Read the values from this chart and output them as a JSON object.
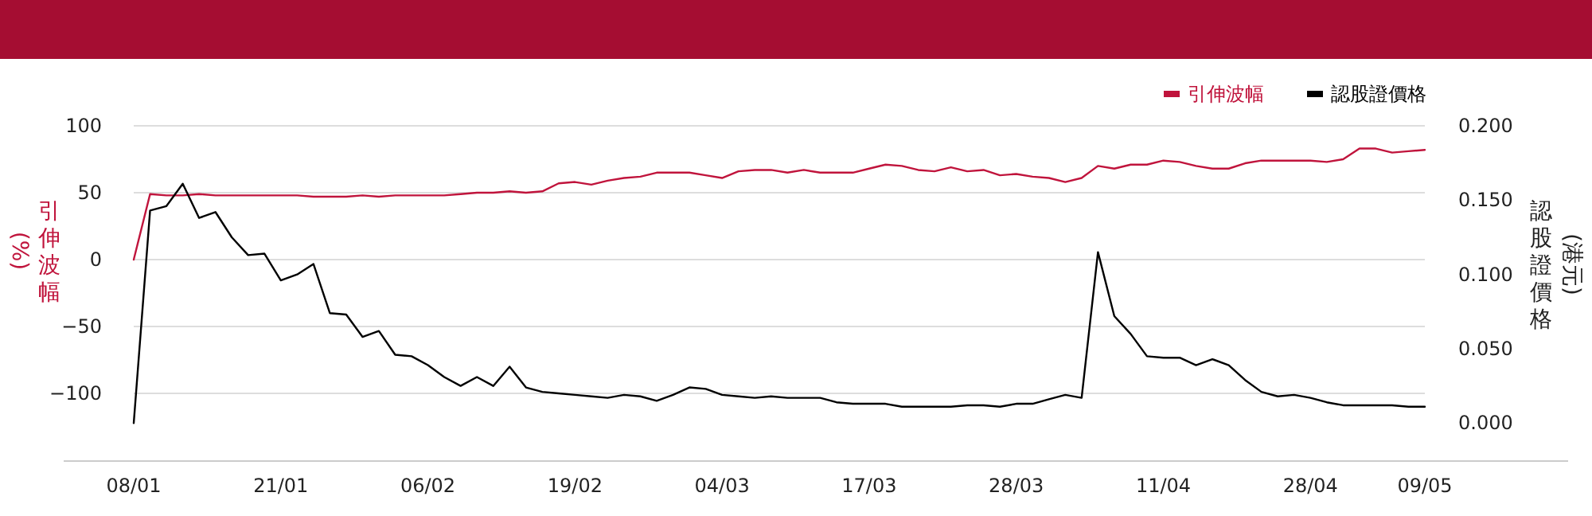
{
  "chart_data": {
    "type": "line",
    "ylabel": "引伸波幅(%)",
    "y2label": "認股證價格(港元)",
    "categories": [
      "08/01",
      null,
      null,
      null,
      null,
      null,
      null,
      null,
      null,
      "21/01",
      null,
      null,
      null,
      null,
      null,
      null,
      null,
      null,
      "06/02",
      null,
      null,
      null,
      null,
      null,
      null,
      null,
      null,
      "19/02",
      null,
      null,
      null,
      null,
      null,
      null,
      null,
      null,
      "04/03",
      null,
      null,
      null,
      null,
      null,
      null,
      null,
      null,
      "17/03",
      null,
      null,
      null,
      null,
      null,
      null,
      null,
      null,
      "28/03",
      null,
      null,
      null,
      null,
      null,
      null,
      null,
      null,
      "11/04",
      null,
      null,
      null,
      null,
      null,
      null,
      null,
      null,
      "28/04",
      null,
      null,
      null,
      null,
      null,
      null,
      "09/05"
    ],
    "series": [
      {
        "name": "引伸波幅",
        "color": "#c0143c",
        "values": [
          0,
          49,
          48,
          48,
          49,
          48,
          48,
          48,
          48,
          48,
          48,
          47,
          47,
          47,
          48,
          47,
          48,
          48,
          48,
          48,
          49,
          50,
          50,
          51,
          50,
          51,
          57,
          58,
          56,
          59,
          61,
          62,
          65,
          65,
          65,
          63,
          61,
          66,
          67,
          67,
          65,
          67,
          65,
          65,
          65,
          68,
          71,
          70,
          67,
          66,
          69,
          66,
          67,
          63,
          64,
          62,
          61,
          58,
          61,
          70,
          68,
          71,
          71,
          74,
          73,
          70,
          68,
          68,
          72,
          74,
          74,
          74,
          74,
          73,
          75,
          83,
          83,
          80,
          81,
          82
        ]
      },
      {
        "name": "認股證價格",
        "color": "#000000",
        "axis": "y2",
        "values": [
          0.0,
          0.143,
          0.146,
          0.161,
          0.138,
          0.142,
          0.125,
          0.113,
          0.114,
          0.096,
          0.1,
          0.107,
          0.074,
          0.073,
          0.058,
          0.062,
          0.046,
          0.045,
          0.039,
          0.031,
          0.025,
          0.031,
          0.025,
          0.038,
          0.024,
          0.021,
          0.02,
          0.019,
          0.018,
          0.017,
          0.019,
          0.018,
          0.015,
          0.019,
          0.024,
          0.023,
          0.019,
          0.018,
          0.017,
          0.018,
          0.017,
          0.017,
          0.017,
          0.014,
          0.013,
          0.013,
          0.013,
          0.011,
          0.011,
          0.011,
          0.011,
          0.012,
          0.012,
          0.011,
          0.013,
          0.013,
          0.016,
          0.019,
          0.017,
          0.115,
          0.072,
          0.06,
          0.045,
          0.044,
          0.044,
          0.039,
          0.043,
          0.039,
          0.029,
          0.021,
          0.018,
          0.019,
          0.017,
          0.014,
          0.012,
          0.012,
          0.012,
          0.012,
          0.011,
          0.011
        ]
      }
    ],
    "ylim": [
      -150,
      100
    ],
    "yticks": [
      100,
      50,
      0,
      -50,
      -100
    ],
    "y2lim": [
      -0.025,
      0.2
    ],
    "y2ticks": [
      {
        "value": 0.2,
        "label": "0.200"
      },
      {
        "value": 0.15,
        "label": "0.150"
      },
      {
        "value": 0.1,
        "label": "0.100"
      },
      {
        "value": 0.05,
        "label": "0.050"
      },
      {
        "value": 0,
        "label": "0.000"
      }
    ],
    "grid": "y",
    "legend": "top right",
    "marker": "none",
    "line_style": "solid"
  }
}
